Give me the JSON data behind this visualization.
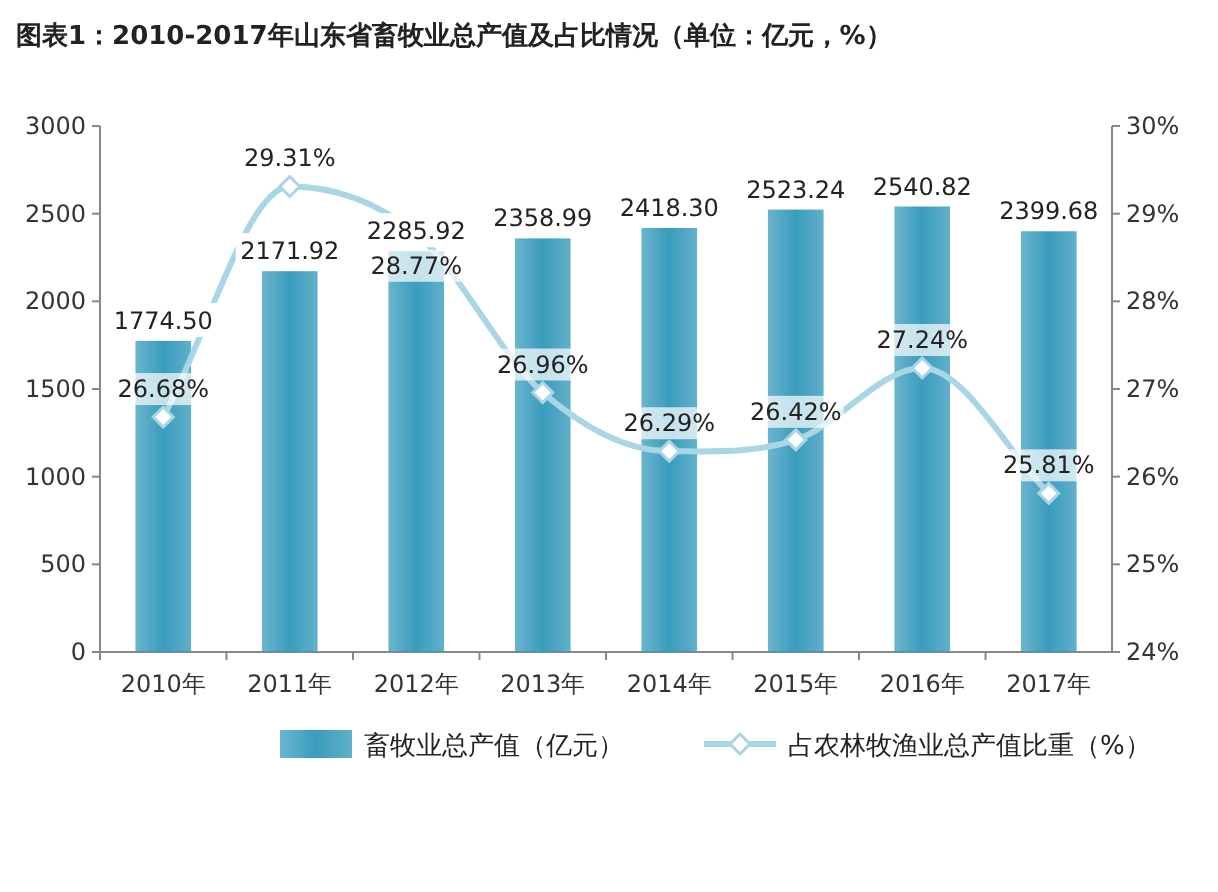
{
  "chart_data": {
    "type": "bar",
    "title": "图表1：2010-2017年山东省畜牧业总产值及占比情况（单位：亿元，%）",
    "categories": [
      "2010年",
      "2011年",
      "2012年",
      "2013年",
      "2014年",
      "2015年",
      "2016年",
      "2017年"
    ],
    "series": [
      {
        "name": "畜牧业总产值（亿元）",
        "color": "#3a9cbd",
        "values": [
          1774.5,
          2171.92,
          2285.92,
          2358.99,
          2418.3,
          2523.24,
          2540.82,
          2399.68
        ],
        "value_labels": [
          "1774.50",
          "2171.92",
          "2285.92",
          "2358.99",
          "2418.30",
          "2523.24",
          "2540.82",
          "2399.68"
        ]
      },
      {
        "name": "占农林牧渔业总产值比重（%）",
        "type": "line",
        "axis": "y2",
        "color": "#a9d6e5",
        "marker": "diamond",
        "values": [
          26.68,
          29.31,
          28.77,
          26.96,
          26.29,
          26.42,
          27.24,
          25.81
        ],
        "value_labels": [
          "26.68%",
          "29.31%",
          "28.77%",
          "26.96%",
          "26.29%",
          "26.42%",
          "27.24%",
          "25.81%"
        ]
      }
    ],
    "ylim": [
      0,
      3000
    ],
    "yticks": [
      0,
      500,
      1000,
      1500,
      2000,
      2500,
      3000
    ],
    "y2lim": [
      24,
      30
    ],
    "y2ticks": [
      {
        "value": 24,
        "label": "24%"
      },
      {
        "value": 25,
        "label": "25%"
      },
      {
        "value": 26,
        "label": "26%"
      },
      {
        "value": 27,
        "label": "27%"
      },
      {
        "value": 28,
        "label": "28%"
      },
      {
        "value": 29,
        "label": "29%"
      },
      {
        "value": 30,
        "label": "30%"
      }
    ],
    "legend": "bottom",
    "grid": false
  }
}
